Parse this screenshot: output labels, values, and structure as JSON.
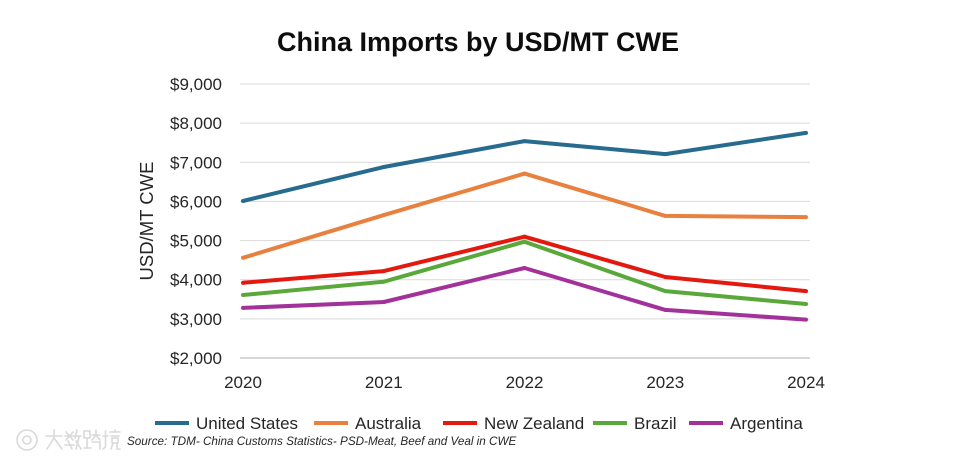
{
  "chart_data": {
    "type": "line",
    "title": "China Imports by USD/MT CWE",
    "xlabel": "",
    "ylabel": "USD/MT CWE",
    "categories": [
      "2020",
      "2021",
      "2022",
      "2023",
      "2024"
    ],
    "ylim": [
      2000,
      9000
    ],
    "yticks": [
      2000,
      3000,
      4000,
      5000,
      6000,
      7000,
      8000,
      9000
    ],
    "ytick_labels": [
      "$2,000",
      "$3,000",
      "$4,000",
      "$5,000",
      "$6,000",
      "$7,000",
      "$8,000",
      "$9,000"
    ],
    "grid": true,
    "legend_position": "bottom",
    "series": [
      {
        "name": "United States",
        "color": "#276b8f",
        "values": [
          6010,
          6880,
          7540,
          7210,
          7750
        ]
      },
      {
        "name": "Australia",
        "color": "#e8813f",
        "values": [
          4560,
          5650,
          6710,
          5630,
          5600
        ]
      },
      {
        "name": "New Zealand",
        "color": "#e3180f",
        "values": [
          3920,
          4220,
          5100,
          4070,
          3710
        ]
      },
      {
        "name": "Brazil",
        "color": "#5aa83a",
        "values": [
          3610,
          3950,
          4970,
          3710,
          3380
        ]
      },
      {
        "name": "Argentina",
        "color": "#a2329a",
        "values": [
          3280,
          3430,
          4300,
          3230,
          2980
        ]
      }
    ],
    "source": "Source: TDM- China Customs Statistics- PSD-Meat, Beef and Veal in CWE"
  },
  "watermark": {
    "text": "大数跨境"
  }
}
